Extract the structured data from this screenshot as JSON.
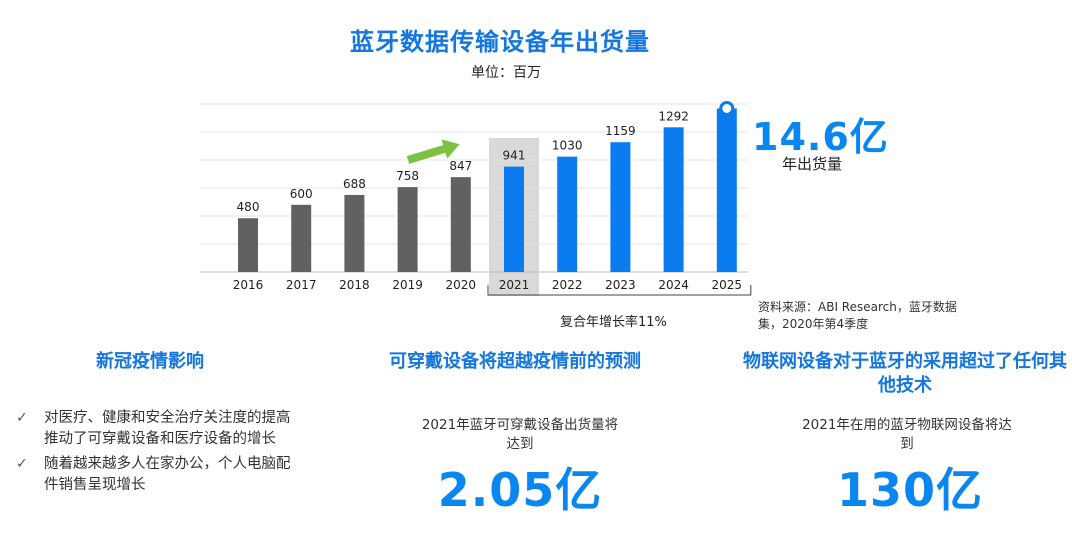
{
  "chart_data": {
    "type": "bar",
    "title": "蓝牙数据传输设备年出货量",
    "unit": "单位：百万",
    "categories": [
      "2016",
      "2017",
      "2018",
      "2019",
      "2020",
      "2021",
      "2022",
      "2023",
      "2024",
      "2025"
    ],
    "values": [
      480,
      600,
      688,
      758,
      847,
      941,
      1030,
      1159,
      1292,
      1460
    ],
    "data_labels": [
      "480",
      "600",
      "688",
      "758",
      "847",
      "941",
      "1030",
      "1159",
      "1292",
      ""
    ],
    "ylim": [
      0,
      1500
    ],
    "grid": true,
    "colors": {
      "historical": "#606163",
      "forecast": "#0a7cf0",
      "highlight_bg": "#d9d9d9",
      "arrow": "#7dc142"
    },
    "forecast_start_index": 5,
    "highlight_index": 5,
    "total_callout": {
      "value": "14.6亿",
      "label": "年出货量"
    },
    "cagr_label": "复合年增长率11%",
    "source": "资料来源：ABI Research，蓝牙数据集，2020年第4季度"
  },
  "sections": {
    "covid": {
      "title": "新冠疫情影响",
      "bullets": [
        "对医疗、健康和安全治疗关注度的提高推动了可穿戴设备和医疗设备的增长",
        "随着越来越多人在家办公，个人电脑配件销售呈现增长"
      ]
    },
    "wearables": {
      "title": "可穿戴设备将超越疫情前的预测",
      "subtitle": "2021年蓝牙可穿戴设备出货量将达到",
      "value": "2.05亿"
    },
    "iot": {
      "title": "物联网设备对于蓝牙的采用超过了任何其他技术",
      "subtitle": "2021年在用的蓝牙物联网设备将达到",
      "value": "130亿"
    }
  }
}
